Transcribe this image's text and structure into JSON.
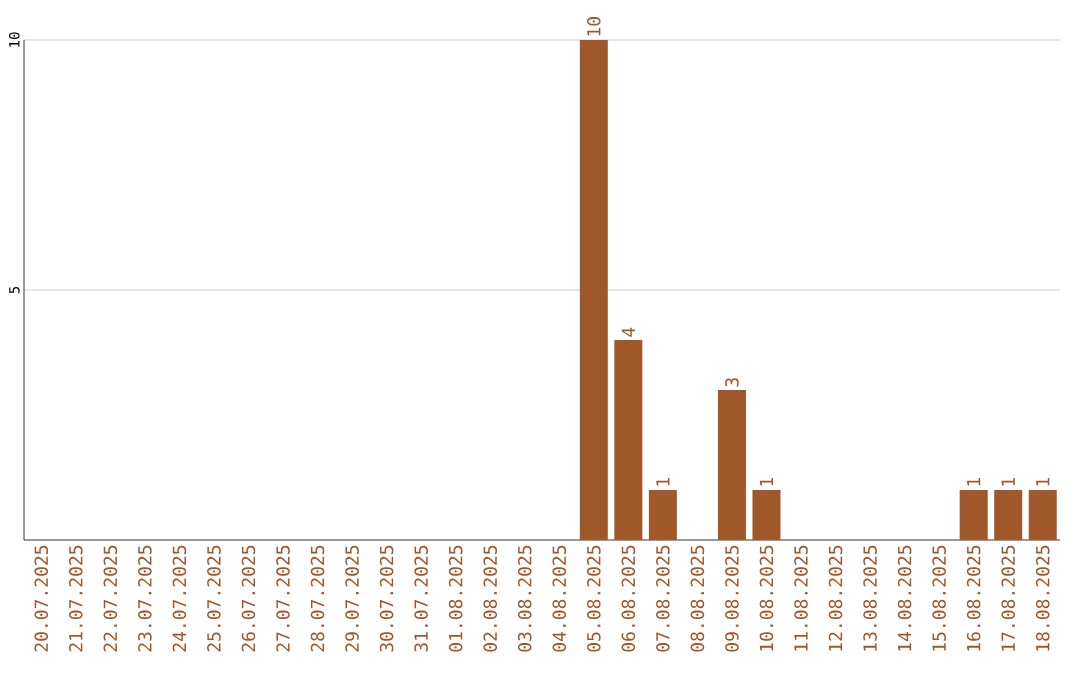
{
  "chart_data": {
    "type": "bar",
    "categories": [
      "20.07.2025",
      "21.07.2025",
      "22.07.2025",
      "23.07.2025",
      "24.07.2025",
      "25.07.2025",
      "26.07.2025",
      "27.07.2025",
      "28.07.2025",
      "29.07.2025",
      "30.07.2025",
      "31.07.2025",
      "01.08.2025",
      "02.08.2025",
      "03.08.2025",
      "04.08.2025",
      "05.08.2025",
      "06.08.2025",
      "07.08.2025",
      "08.08.2025",
      "09.08.2025",
      "10.08.2025",
      "11.08.2025",
      "12.08.2025",
      "13.08.2025",
      "14.08.2025",
      "15.08.2025",
      "16.08.2025",
      "17.08.2025",
      "18.08.2025"
    ],
    "values": [
      0,
      0,
      0,
      0,
      0,
      0,
      0,
      0,
      0,
      0,
      0,
      0,
      0,
      0,
      0,
      0,
      10,
      4,
      1,
      0,
      3,
      1,
      0,
      0,
      0,
      0,
      0,
      1,
      1,
      1
    ],
    "value_labels": [
      null,
      null,
      null,
      null,
      null,
      null,
      null,
      null,
      null,
      null,
      null,
      null,
      null,
      null,
      null,
      null,
      "10",
      "4",
      "1",
      null,
      "3",
      "1",
      null,
      null,
      null,
      null,
      null,
      "1",
      "1",
      "1"
    ],
    "color": "#a0572a",
    "ylim": [
      0,
      10
    ],
    "yticks": [
      5,
      10
    ],
    "grid": "y"
  }
}
